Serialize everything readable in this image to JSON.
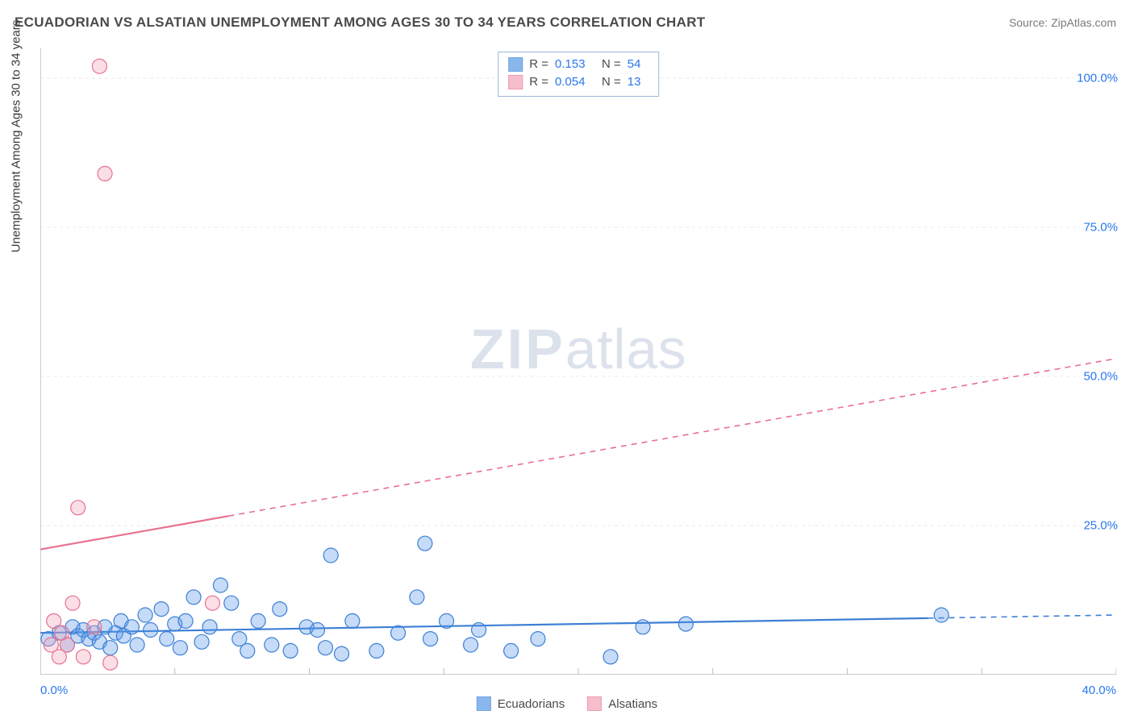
{
  "title": "ECUADORIAN VS ALSATIAN UNEMPLOYMENT AMONG AGES 30 TO 34 YEARS CORRELATION CHART",
  "source_label": "Source:",
  "source_value": "ZipAtlas.com",
  "y_axis_label": "Unemployment Among Ages 30 to 34 years",
  "watermark_bold": "ZIP",
  "watermark_light": "atlas",
  "chart": {
    "type": "scatter",
    "xlim": [
      0,
      40
    ],
    "ylim": [
      0,
      105
    ],
    "x_ticks": [
      0,
      5,
      10,
      15,
      20,
      25,
      30,
      35,
      40
    ],
    "x_tick_labels": {
      "0": "0.0%",
      "40": "40.0%"
    },
    "y_ticks": [
      25,
      50,
      75,
      100
    ],
    "y_tick_labels": {
      "25": "25.0%",
      "50": "50.0%",
      "75": "75.0%",
      "100": "100.0%"
    },
    "grid_color": "#e8e8e8",
    "axis_color": "#bcbcbc",
    "background_color": "#ffffff",
    "marker_radius": 9,
    "marker_stroke_width": 1.2,
    "marker_fill_opacity": 0.35
  },
  "series": [
    {
      "name": "Ecuadorians",
      "color": "#5a98e8",
      "stroke": "#3d7fd6",
      "R": "0.153",
      "N": "54",
      "trend": {
        "x1": 0,
        "y1": 7.0,
        "x2": 40,
        "y2": 10.0,
        "solid_until_x": 33
      },
      "points": [
        [
          0.3,
          6
        ],
        [
          0.7,
          7
        ],
        [
          1.0,
          5
        ],
        [
          1.2,
          8
        ],
        [
          1.4,
          6.5
        ],
        [
          1.6,
          7.5
        ],
        [
          1.8,
          6
        ],
        [
          2.0,
          7
        ],
        [
          2.2,
          5.5
        ],
        [
          2.4,
          8
        ],
        [
          2.6,
          4.5
        ],
        [
          2.8,
          7
        ],
        [
          3.0,
          9
        ],
        [
          3.1,
          6.5
        ],
        [
          3.4,
          8
        ],
        [
          3.6,
          5
        ],
        [
          3.9,
          10
        ],
        [
          4.1,
          7.5
        ],
        [
          4.5,
          11
        ],
        [
          4.7,
          6
        ],
        [
          5.0,
          8.5
        ],
        [
          5.2,
          4.5
        ],
        [
          5.4,
          9
        ],
        [
          5.7,
          13
        ],
        [
          6.0,
          5.5
        ],
        [
          6.3,
          8
        ],
        [
          6.7,
          15
        ],
        [
          7.1,
          12
        ],
        [
          7.4,
          6
        ],
        [
          7.7,
          4
        ],
        [
          8.1,
          9
        ],
        [
          8.6,
          5
        ],
        [
          8.9,
          11
        ],
        [
          9.3,
          4
        ],
        [
          9.9,
          8
        ],
        [
          10.3,
          7.5
        ],
        [
          10.6,
          4.5
        ],
        [
          10.8,
          20
        ],
        [
          11.2,
          3.5
        ],
        [
          11.6,
          9
        ],
        [
          12.5,
          4
        ],
        [
          13.3,
          7
        ],
        [
          14.0,
          13
        ],
        [
          14.3,
          22
        ],
        [
          14.5,
          6
        ],
        [
          15.1,
          9
        ],
        [
          16.0,
          5
        ],
        [
          16.3,
          7.5
        ],
        [
          17.5,
          4
        ],
        [
          18.5,
          6
        ],
        [
          21.2,
          3
        ],
        [
          22.4,
          8
        ],
        [
          24.0,
          8.5
        ],
        [
          33.5,
          10
        ]
      ]
    },
    {
      "name": "Alsatians",
      "color": "#f3a3b8",
      "stroke": "#e8718f",
      "R": "0.054",
      "N": "13",
      "trend": {
        "x1": 0,
        "y1": 21.0,
        "x2": 40,
        "y2": 53.0,
        "solid_until_x": 7
      },
      "points": [
        [
          0.4,
          5
        ],
        [
          0.5,
          9
        ],
        [
          0.7,
          3
        ],
        [
          0.8,
          7
        ],
        [
          1.0,
          5
        ],
        [
          1.2,
          12
        ],
        [
          1.4,
          28
        ],
        [
          1.6,
          3
        ],
        [
          2.0,
          8
        ],
        [
          2.2,
          102
        ],
        [
          2.4,
          84
        ],
        [
          2.6,
          2
        ],
        [
          6.4,
          12
        ]
      ]
    }
  ],
  "corr_legend_label_R": "R  =",
  "corr_legend_label_N": "N  =",
  "bottom_legend": [
    {
      "label": "Ecuadorians",
      "series_idx": 0
    },
    {
      "label": "Alsatians",
      "series_idx": 1
    }
  ]
}
